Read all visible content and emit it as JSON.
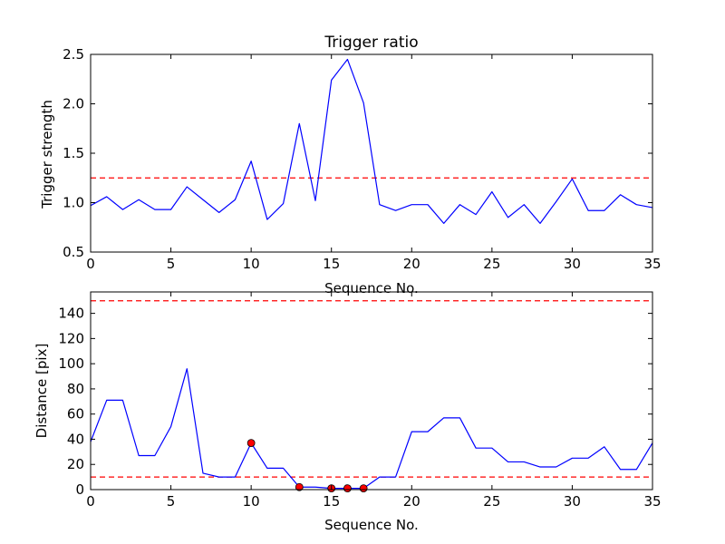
{
  "colors": {
    "line": "#0000ff",
    "threshold": "#ff0000",
    "marker": "#ff0000",
    "axes": "#000000",
    "background": "#ffffff"
  },
  "chart_data": [
    {
      "type": "line",
      "title": "Trigger ratio",
      "xlabel": "Sequence No.",
      "ylabel": "Trigger strength",
      "xlim": [
        0,
        35
      ],
      "ylim": [
        0.5,
        2.5
      ],
      "grid": false,
      "xticks": [
        0,
        5,
        10,
        15,
        20,
        25,
        30,
        35
      ],
      "yticks": [
        0.5,
        1.0,
        1.5,
        2.0,
        2.5
      ],
      "ytick_labels": [
        "0.5",
        "1.0",
        "1.5",
        "2.0",
        "2.5"
      ],
      "x": [
        0,
        1,
        2,
        3,
        4,
        5,
        6,
        7,
        8,
        9,
        10,
        11,
        12,
        13,
        14,
        15,
        16,
        17,
        18,
        19,
        20,
        21,
        22,
        23,
        24,
        25,
        26,
        27,
        28,
        29,
        30,
        31,
        32,
        33,
        34,
        35
      ],
      "series": [
        {
          "values": [
            0.97,
            1.06,
            0.93,
            1.03,
            0.93,
            0.93,
            1.16,
            1.03,
            0.9,
            1.03,
            1.42,
            0.83,
            0.99,
            1.8,
            1.02,
            2.24,
            2.45,
            2.01,
            0.98,
            0.92,
            0.98,
            0.98,
            0.79,
            0.98,
            0.88,
            1.11,
            0.85,
            0.98,
            0.79,
            1.01,
            1.24,
            0.92,
            0.92,
            1.08,
            0.98,
            0.95
          ]
        }
      ],
      "thresholds": [
        1.25
      ]
    },
    {
      "type": "line",
      "title": "",
      "xlabel": "Sequence No.",
      "ylabel": "Distance [pix]",
      "xlim": [
        0,
        35
      ],
      "ylim": [
        0,
        157
      ],
      "grid": false,
      "xticks": [
        0,
        5,
        10,
        15,
        20,
        25,
        30,
        35
      ],
      "yticks": [
        0,
        20,
        40,
        60,
        80,
        100,
        120,
        140
      ],
      "ytick_labels": [
        "0",
        "20",
        "40",
        "60",
        "80",
        "100",
        "120",
        "140"
      ],
      "x": [
        0,
        1,
        2,
        3,
        4,
        5,
        6,
        7,
        8,
        9,
        10,
        11,
        12,
        13,
        14,
        15,
        16,
        17,
        18,
        19,
        20,
        21,
        22,
        23,
        24,
        25,
        26,
        27,
        28,
        29,
        30,
        31,
        32,
        33,
        34,
        35
      ],
      "series": [
        {
          "values": [
            38,
            71,
            71,
            27,
            27,
            50,
            96,
            13,
            10,
            10,
            37,
            17,
            17,
            2,
            2,
            1,
            1,
            1,
            10,
            10,
            46,
            46,
            57,
            57,
            33,
            33,
            22,
            22,
            18,
            18,
            25,
            25,
            34,
            16,
            16,
            37
          ]
        }
      ],
      "markers": {
        "x": [
          10,
          13,
          15,
          16,
          17
        ],
        "y": [
          37,
          2,
          1,
          1,
          1
        ]
      },
      "thresholds": [
        10,
        150
      ]
    }
  ]
}
